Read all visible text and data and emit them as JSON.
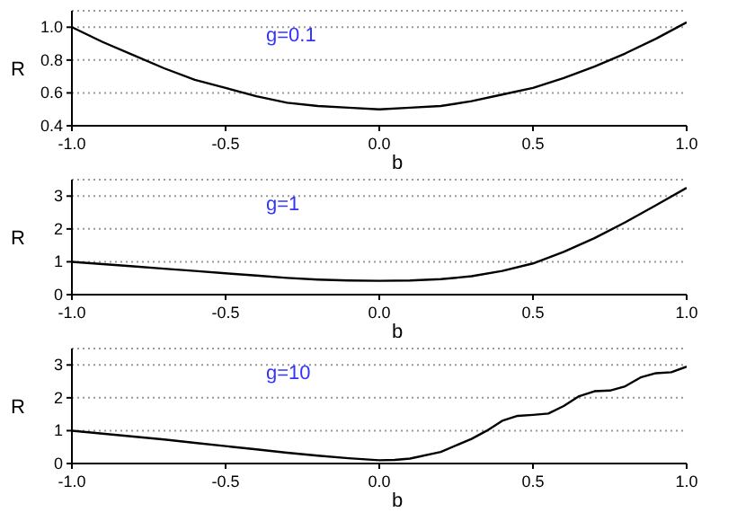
{
  "chart_data": [
    {
      "type": "line",
      "xlabel": "b",
      "ylabel": "R",
      "annotations": [
        "g=0.1"
      ],
      "x": [
        -1,
        -0.9,
        -0.8,
        -0.7,
        -0.6,
        -0.5,
        -0.4,
        -0.3,
        -0.2,
        -0.1,
        0,
        0.1,
        0.2,
        0.3,
        0.4,
        0.5,
        0.6,
        0.7,
        0.8,
        0.9,
        1
      ],
      "series": [
        {
          "color": "#000000",
          "values": [
            1.0,
            0.91,
            0.83,
            0.75,
            0.68,
            0.63,
            0.58,
            0.54,
            0.52,
            0.51,
            0.5,
            0.51,
            0.52,
            0.55,
            0.59,
            0.63,
            0.69,
            0.76,
            0.84,
            0.93,
            1.03
          ]
        }
      ],
      "xlim": [
        -1,
        1
      ],
      "xticks": [
        {
          "value": -1,
          "label": "-1.0"
        },
        {
          "value": -0.5,
          "label": "-0.5"
        },
        {
          "value": 0,
          "label": "0.0"
        },
        {
          "value": 0.5,
          "label": "0.5"
        },
        {
          "value": 1,
          "label": "1.0"
        }
      ],
      "ylim": [
        0.4,
        1.1
      ],
      "yticks": [
        0.4,
        0.6,
        0.8,
        {
          "value": 1,
          "label": "1.0"
        }
      ],
      "grid": "y"
    },
    {
      "type": "line",
      "xlabel": "b",
      "ylabel": "R",
      "annotations": [
        "g=1"
      ],
      "x": [
        -1,
        -0.9,
        -0.8,
        -0.7,
        -0.6,
        -0.5,
        -0.4,
        -0.3,
        -0.2,
        -0.1,
        0,
        0.1,
        0.2,
        0.3,
        0.4,
        0.5,
        0.6,
        0.7,
        0.8,
        0.9,
        1
      ],
      "series": [
        {
          "color": "#000000",
          "values": [
            1.0,
            0.93,
            0.86,
            0.79,
            0.72,
            0.65,
            0.58,
            0.51,
            0.46,
            0.43,
            0.42,
            0.43,
            0.47,
            0.56,
            0.72,
            0.95,
            1.3,
            1.72,
            2.2,
            2.72,
            3.25
          ]
        }
      ],
      "xlim": [
        -1,
        1
      ],
      "xticks": [
        {
          "value": -1,
          "label": "-1.0"
        },
        {
          "value": -0.5,
          "label": "-0.5"
        },
        {
          "value": 0,
          "label": "0.0"
        },
        {
          "value": 0.5,
          "label": "0.5"
        },
        {
          "value": 1,
          "label": "1.0"
        }
      ],
      "ylim": [
        0,
        3.5
      ],
      "yticks": [
        0,
        1,
        2,
        3
      ],
      "grid": "y"
    },
    {
      "type": "line",
      "xlabel": "b",
      "ylabel": "R",
      "annotations": [
        "g=10"
      ],
      "x": [
        -1,
        -0.9,
        -0.8,
        -0.7,
        -0.6,
        -0.5,
        -0.4,
        -0.3,
        -0.2,
        -0.1,
        0,
        0.05,
        0.1,
        0.2,
        0.3,
        0.35,
        0.4,
        0.45,
        0.5,
        0.55,
        0.6,
        0.65,
        0.7,
        0.75,
        0.8,
        0.85,
        0.9,
        0.95,
        1
      ],
      "series": [
        {
          "color": "#000000",
          "values": [
            1.0,
            0.91,
            0.82,
            0.73,
            0.63,
            0.53,
            0.43,
            0.33,
            0.24,
            0.16,
            0.1,
            0.11,
            0.15,
            0.35,
            0.75,
            1.0,
            1.3,
            1.45,
            1.48,
            1.52,
            1.75,
            2.05,
            2.2,
            2.22,
            2.35,
            2.62,
            2.75,
            2.78,
            2.95
          ]
        }
      ],
      "xlim": [
        -1,
        1
      ],
      "xticks": [
        {
          "value": -1,
          "label": "-1.0"
        },
        {
          "value": -0.5,
          "label": "-0.5"
        },
        {
          "value": 0,
          "label": "0.0"
        },
        {
          "value": 0.5,
          "label": "0.5"
        },
        {
          "value": 1,
          "label": "1.0"
        }
      ],
      "ylim": [
        0,
        3.5
      ],
      "yticks": [
        0,
        1,
        2,
        3
      ],
      "grid": "y"
    }
  ]
}
